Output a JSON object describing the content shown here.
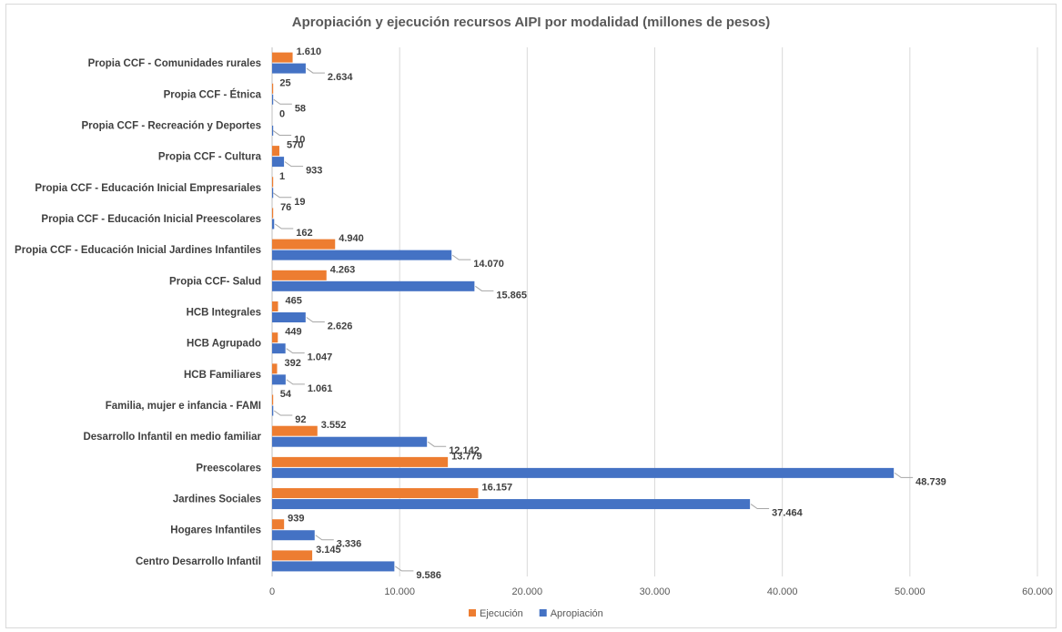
{
  "chart_data": {
    "type": "bar",
    "orientation": "horizontal",
    "title": "Apropiación y ejecución recursos AIPI por modalidad (millones de pesos)",
    "xlabel": "",
    "ylabel": "",
    "xlim": [
      0,
      60000
    ],
    "x_ticks": [
      "0",
      "10.000",
      "20.000",
      "30.000",
      "40.000",
      "50.000",
      "60.000"
    ],
    "grid": true,
    "legend_position": "bottom",
    "categories": [
      "Propia CCF - Comunidades rurales",
      "Propia CCF - Étnica",
      "Propia CCF - Recreación y Deportes",
      "Propia CCF - Cultura",
      "Propia CCF - Educación Inicial Empresariales",
      "Propia CCF - Educación Inicial Preescolares",
      "Propia CCF - Educación Inicial Jardines Infantiles",
      "Propia CCF- Salud",
      "HCB Integrales",
      "HCB Agrupado",
      "HCB Familiares",
      "Familia, mujer e infancia - FAMI",
      "Desarrollo Infantil en medio familiar",
      "Preescolares",
      "Jardines Sociales",
      "Hogares Infantiles",
      "Centro Desarrollo Infantil"
    ],
    "series": [
      {
        "name": "Ejecución",
        "color": "#ed7d31",
        "values": [
          1610,
          25,
          0,
          570,
          1,
          76,
          4940,
          4263,
          465,
          449,
          392,
          54,
          3552,
          13779,
          16157,
          939,
          3145
        ],
        "labels": [
          "1.610",
          "25",
          "0",
          "570",
          "1",
          "76",
          "4.940",
          "4.263",
          "465",
          "449",
          "392",
          "54",
          "3.552",
          "13.779",
          "16.157",
          "939",
          "3.145"
        ]
      },
      {
        "name": "Apropiación",
        "color": "#4472c4",
        "values": [
          2634,
          58,
          10,
          933,
          19,
          162,
          14070,
          15865,
          2626,
          1047,
          1061,
          92,
          12142,
          48739,
          37464,
          3336,
          9586
        ],
        "labels": [
          "2.634",
          "58",
          "10",
          "933",
          "19",
          "162",
          "14.070",
          "15.865",
          "2.626",
          "1.047",
          "1.061",
          "92",
          "12.142",
          "48.739",
          "37.464",
          "3.336",
          "9.586"
        ]
      }
    ]
  }
}
